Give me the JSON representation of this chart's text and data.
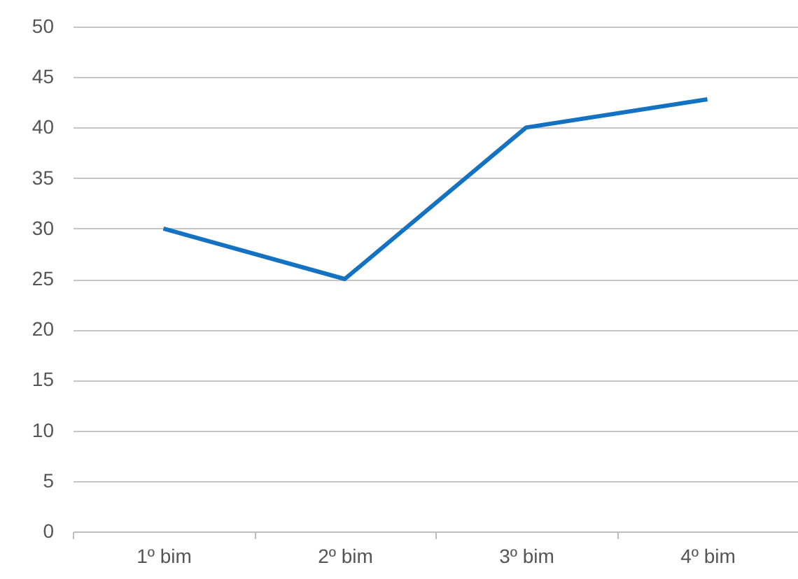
{
  "chart_data": {
    "type": "line",
    "categories": [
      "1º bim",
      "2º bim",
      "3º bim",
      "4º bim"
    ],
    "series": [
      {
        "color": "#1372c1",
        "values": [
          30,
          25,
          40,
          42.8
        ]
      }
    ],
    "ylim": [
      0,
      50
    ],
    "yticks": [
      0,
      5,
      10,
      15,
      20,
      25,
      30,
      35,
      40,
      45,
      50
    ],
    "grid": "y"
  }
}
